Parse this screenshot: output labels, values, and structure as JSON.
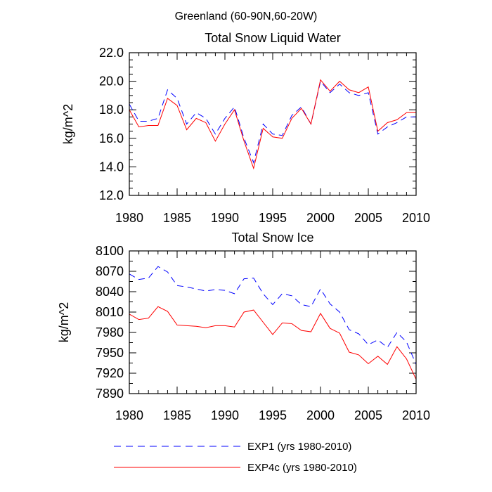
{
  "figure": {
    "suptitle": "Greenland (60-90N,60-20W)"
  },
  "colors": {
    "exp1": "#0000ff",
    "exp4c": "#ff0000",
    "axis": "#000000"
  },
  "legend": {
    "placement": "bottom",
    "items": [
      {
        "label": "EXP1 (yrs 1980-2010)",
        "color": "#0000ff",
        "style": "dashed"
      },
      {
        "label": "EXP4c (yrs 1980-2010)",
        "color": "#ff0000",
        "style": "solid"
      }
    ]
  },
  "chart_data": [
    {
      "type": "line",
      "title": "Total Snow Liquid Water",
      "xlabel": "",
      "ylabel": "kg/m^2",
      "xlim": [
        1980,
        2010
      ],
      "ylim": [
        12,
        22
      ],
      "xticks": [
        1980,
        1985,
        1990,
        1995,
        2000,
        2005,
        2010
      ],
      "xtick_labels": [
        "1980",
        "1985",
        "1990",
        "1995",
        "2000",
        "2005",
        "2010"
      ],
      "yticks": [
        12,
        14,
        16,
        18,
        20,
        22
      ],
      "ytick_labels": [
        "12.0",
        "14.0",
        "16.0",
        "18.0",
        "20.0",
        "22.0"
      ],
      "grid": false,
      "x": [
        1980,
        1981,
        1982,
        1983,
        1984,
        1985,
        1986,
        1987,
        1988,
        1989,
        1990,
        1991,
        1992,
        1993,
        1994,
        1995,
        1996,
        1997,
        1998,
        1999,
        2000,
        2001,
        2002,
        2003,
        2004,
        2005,
        2006,
        2007,
        2008,
        2009,
        2010
      ],
      "series": [
        {
          "name": "EXP1 (yrs 1980-2010)",
          "color": "#0000ff",
          "style": "dashed",
          "values": [
            18.4,
            17.2,
            17.2,
            17.4,
            19.4,
            18.8,
            17.0,
            17.8,
            17.4,
            16.3,
            17.4,
            18.2,
            16.0,
            14.3,
            17.0,
            16.3,
            16.2,
            17.6,
            18.2,
            17.0,
            20.0,
            19.2,
            19.8,
            19.2,
            19.0,
            19.2,
            16.3,
            16.8,
            17.1,
            17.5,
            17.5
          ]
        },
        {
          "name": "EXP4c (yrs 1980-2010)",
          "color": "#ff0000",
          "style": "solid",
          "values": [
            18.0,
            16.8,
            16.9,
            16.9,
            18.8,
            18.3,
            16.6,
            17.4,
            17.1,
            15.8,
            17.0,
            18.0,
            15.8,
            13.9,
            16.7,
            16.1,
            16.0,
            17.4,
            18.1,
            17.0,
            20.1,
            19.3,
            20.0,
            19.4,
            19.2,
            19.6,
            16.5,
            17.1,
            17.3,
            17.8,
            17.8
          ]
        }
      ]
    },
    {
      "type": "line",
      "title": "Total Snow Ice",
      "xlabel": "",
      "ylabel": "kg/m^2",
      "xlim": [
        1980,
        2010
      ],
      "ylim": [
        7890,
        8100
      ],
      "xticks": [
        1980,
        1985,
        1990,
        1995,
        2000,
        2005,
        2010
      ],
      "xtick_labels": [
        "1980",
        "1985",
        "1990",
        "1995",
        "2000",
        "2005",
        "2010"
      ],
      "yticks": [
        7890,
        7920,
        7950,
        7980,
        8010,
        8040,
        8070,
        8100
      ],
      "ytick_labels": [
        "7890",
        "7920",
        "7950",
        "7980",
        "8010",
        "8040",
        "8070",
        "8100"
      ],
      "grid": false,
      "x": [
        1980,
        1981,
        1982,
        1983,
        1984,
        1985,
        1986,
        1987,
        1988,
        1989,
        1990,
        1991,
        1992,
        1993,
        1994,
        1995,
        1996,
        1997,
        1998,
        1999,
        2000,
        2001,
        2002,
        2003,
        2004,
        2005,
        2006,
        2007,
        2008,
        2009,
        2010
      ],
      "series": [
        {
          "name": "EXP1 (yrs 1980-2010)",
          "color": "#0000ff",
          "style": "dashed",
          "values": [
            8066,
            8058,
            8060,
            8077,
            8069,
            8049,
            8047,
            8044,
            8041,
            8043,
            8042,
            8037,
            8059,
            8060,
            8037,
            8021,
            8037,
            8034,
            8021,
            8018,
            8044,
            8022,
            8010,
            7984,
            7978,
            7962,
            7969,
            7958,
            7980,
            7966,
            7933
          ]
        },
        {
          "name": "EXP4c (yrs 1980-2010)",
          "color": "#ff0000",
          "style": "solid",
          "values": [
            8007,
            7999,
            8001,
            8018,
            8011,
            7991,
            7990,
            7989,
            7987,
            7990,
            7990,
            7988,
            8010,
            8013,
            7995,
            7977,
            7994,
            7993,
            7983,
            7981,
            8008,
            7986,
            7979,
            7951,
            7947,
            7934,
            7945,
            7933,
            7959,
            7941,
            7911
          ]
        }
      ]
    }
  ]
}
